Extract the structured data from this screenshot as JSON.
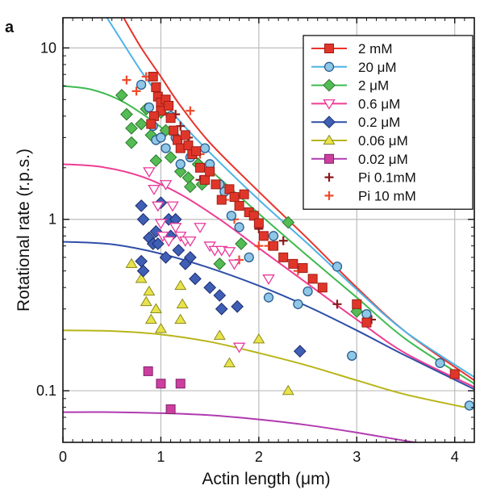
{
  "panel_label": "a",
  "chart_data": {
    "type": "scatter",
    "xlabel": "Actin length (μm)",
    "ylabel": "Rotational rate (r.p.s.)",
    "xlim": [
      0,
      4.2
    ],
    "ylim": [
      0.05,
      15
    ],
    "yscale": "log",
    "grid": true,
    "legend_position": "top-right",
    "x_ticks": [
      {
        "v": 0,
        "label": "0"
      },
      {
        "v": 1,
        "label": "1"
      },
      {
        "v": 2,
        "label": "2"
      },
      {
        "v": 3,
        "label": "3"
      },
      {
        "v": 4,
        "label": "4"
      }
    ],
    "y_ticks": [
      {
        "v": 0.1,
        "label": "0.1"
      },
      {
        "v": 1,
        "label": "1"
      },
      {
        "v": 10,
        "label": "10"
      }
    ],
    "series": [
      {
        "name": "2 mM",
        "marker": "square",
        "color": "#e0362a",
        "stroke": "#a01c14",
        "curve": {
          "color": "#e8332a",
          "x": [
            0.62,
            0.8,
            1.0,
            1.2,
            1.5,
            2.0,
            2.5,
            3.0,
            3.5,
            4.2
          ],
          "y": [
            15,
            10,
            6.8,
            4.6,
            2.8,
            1.45,
            0.77,
            0.4,
            0.22,
            0.115
          ]
        },
        "points": [
          [
            0.92,
            6.8
          ],
          [
            0.95,
            5.9
          ],
          [
            0.97,
            5.2
          ],
          [
            1.0,
            4.8
          ],
          [
            1.0,
            4.3
          ],
          [
            0.93,
            4.0
          ],
          [
            0.9,
            3.6
          ],
          [
            1.05,
            5.0
          ],
          [
            1.08,
            4.6
          ],
          [
            1.1,
            3.9
          ],
          [
            1.13,
            3.3
          ],
          [
            1.17,
            2.9
          ],
          [
            1.2,
            2.6
          ],
          [
            1.25,
            3.1
          ],
          [
            1.28,
            2.7
          ],
          [
            1.32,
            2.4
          ],
          [
            1.36,
            2.5
          ],
          [
            1.4,
            2.0
          ],
          [
            1.45,
            1.7
          ],
          [
            1.5,
            1.9
          ],
          [
            1.56,
            1.6
          ],
          [
            1.62,
            1.3
          ],
          [
            1.7,
            1.5
          ],
          [
            1.75,
            1.35
          ],
          [
            1.8,
            1.2
          ],
          [
            1.85,
            1.4
          ],
          [
            1.9,
            1.1
          ],
          [
            1.95,
            1.05
          ],
          [
            2.0,
            0.95
          ],
          [
            2.05,
            0.8
          ],
          [
            2.15,
            0.7
          ],
          [
            2.25,
            0.6
          ],
          [
            2.35,
            0.55
          ],
          [
            2.45,
            0.52
          ],
          [
            2.55,
            0.45
          ],
          [
            2.65,
            0.4
          ],
          [
            3.0,
            0.32
          ],
          [
            3.1,
            0.25
          ],
          [
            4.0,
            0.125
          ]
        ]
      },
      {
        "name": "20 μM",
        "marker": "circle",
        "color": "#8fc7e6",
        "stroke": "#2a5c8e",
        "curve": {
          "color": "#4db3e6",
          "x": [
            0.45,
            0.6,
            0.8,
            1.0,
            1.2,
            1.5,
            2.0,
            2.5,
            3.0,
            3.5,
            4.2
          ],
          "y": [
            15,
            11,
            7.3,
            5.1,
            3.7,
            2.45,
            1.3,
            0.72,
            0.39,
            0.22,
            0.12
          ]
        },
        "points": [
          [
            0.8,
            6.1
          ],
          [
            0.88,
            4.5
          ],
          [
            0.92,
            3.5
          ],
          [
            0.95,
            2.9
          ],
          [
            1.0,
            3.0
          ],
          [
            1.05,
            2.6
          ],
          [
            1.1,
            4.0
          ],
          [
            1.15,
            3.0
          ],
          [
            1.2,
            2.1
          ],
          [
            1.3,
            2.3
          ],
          [
            1.45,
            2.6
          ],
          [
            1.5,
            2.1
          ],
          [
            1.6,
            1.6
          ],
          [
            1.65,
            1.45
          ],
          [
            1.72,
            1.05
          ],
          [
            1.8,
            0.9
          ],
          [
            1.9,
            0.6
          ],
          [
            2.1,
            0.35
          ],
          [
            2.15,
            0.8
          ],
          [
            2.4,
            0.32
          ],
          [
            2.5,
            0.38
          ],
          [
            2.8,
            0.53
          ],
          [
            2.95,
            0.16
          ],
          [
            3.1,
            0.28
          ],
          [
            3.85,
            0.145
          ],
          [
            4.15,
            0.082
          ]
        ]
      },
      {
        "name": "2 μM",
        "marker": "diamond",
        "color": "#55bb55",
        "stroke": "#2a7a2a",
        "curve": {
          "color": "#3fba4f",
          "x": [
            0,
            0.3,
            0.6,
            0.9,
            1.2,
            1.5,
            2.0,
            2.5,
            3.0,
            3.5,
            4.2
          ],
          "y": [
            6.0,
            5.7,
            4.9,
            3.8,
            2.8,
            1.95,
            1.08,
            0.61,
            0.35,
            0.2,
            0.11
          ]
        },
        "points": [
          [
            0.6,
            5.3
          ],
          [
            0.65,
            4.1
          ],
          [
            0.7,
            3.4
          ],
          [
            0.7,
            2.8
          ],
          [
            0.8,
            3.6
          ],
          [
            0.85,
            4.4
          ],
          [
            0.9,
            3.1
          ],
          [
            0.95,
            2.2
          ],
          [
            1.0,
            4.2
          ],
          [
            1.05,
            3.3
          ],
          [
            1.1,
            2.3
          ],
          [
            1.2,
            1.9
          ],
          [
            1.28,
            1.75
          ],
          [
            1.3,
            1.55
          ],
          [
            1.38,
            2.1
          ],
          [
            1.42,
            1.6
          ],
          [
            1.6,
            0.55
          ],
          [
            1.82,
            0.72
          ],
          [
            2.3,
            0.96
          ],
          [
            3.0,
            0.29
          ]
        ]
      },
      {
        "name": "0.6 μM",
        "marker": "triangle-down",
        "color": "#ffffff",
        "stroke": "#e8399a",
        "curve": {
          "color": "#ee3d93",
          "x": [
            0,
            0.4,
            0.8,
            1.2,
            1.6,
            2.0,
            2.5,
            3.0,
            3.5,
            4.2
          ],
          "y": [
            2.1,
            2.02,
            1.78,
            1.4,
            1.0,
            0.68,
            0.42,
            0.26,
            0.165,
            0.105
          ]
        },
        "points": [
          [
            0.88,
            1.9
          ],
          [
            0.93,
            1.5
          ],
          [
            0.97,
            1.2
          ],
          [
            1.0,
            0.95
          ],
          [
            1.02,
            0.8
          ],
          [
            1.05,
            1.6
          ],
          [
            1.08,
            0.75
          ],
          [
            1.12,
            1.2
          ],
          [
            1.15,
            0.9
          ],
          [
            1.2,
            0.8
          ],
          [
            1.25,
            0.75
          ],
          [
            1.3,
            0.75
          ],
          [
            1.4,
            0.9
          ],
          [
            1.5,
            0.7
          ],
          [
            1.55,
            0.66
          ],
          [
            1.62,
            0.66
          ],
          [
            1.7,
            0.65
          ],
          [
            1.75,
            0.55
          ],
          [
            1.8,
            0.18
          ],
          [
            2.1,
            0.45
          ]
        ]
      },
      {
        "name": "0.2 μM",
        "marker": "diamond",
        "color": "#3f5fb5",
        "stroke": "#1c2d6e",
        "curve": {
          "color": "#2f4fa8",
          "x": [
            0,
            0.5,
            1.0,
            1.5,
            2.0,
            2.5,
            3.0,
            3.5,
            4.2
          ],
          "y": [
            0.74,
            0.715,
            0.63,
            0.52,
            0.41,
            0.31,
            0.225,
            0.16,
            0.102
          ]
        },
        "points": [
          [
            0.8,
            1.2
          ],
          [
            0.82,
            1.0
          ],
          [
            0.8,
            0.57
          ],
          [
            0.82,
            0.5
          ],
          [
            0.88,
            0.78
          ],
          [
            0.92,
            0.72
          ],
          [
            0.95,
            0.85
          ],
          [
            0.97,
            0.72
          ],
          [
            1.0,
            1.25
          ],
          [
            1.05,
            0.6
          ],
          [
            1.08,
            1.0
          ],
          [
            1.1,
            0.8
          ],
          [
            1.15,
            1.0
          ],
          [
            1.18,
            0.66
          ],
          [
            1.25,
            0.55
          ],
          [
            1.3,
            0.6
          ],
          [
            1.35,
            0.45
          ],
          [
            1.5,
            0.4
          ],
          [
            1.6,
            0.36
          ],
          [
            1.62,
            0.3
          ],
          [
            1.78,
            0.31
          ],
          [
            2.42,
            0.17
          ]
        ]
      },
      {
        "name": "0.06 μM",
        "marker": "triangle",
        "color": "#e8e34a",
        "stroke": "#8a8a20",
        "curve": {
          "color": "#b8b51a",
          "x": [
            0,
            0.5,
            1.0,
            1.5,
            2.0,
            2.5,
            3.0,
            3.5,
            4.2
          ],
          "y": [
            0.225,
            0.223,
            0.213,
            0.193,
            0.166,
            0.14,
            0.115,
            0.095,
            0.078
          ]
        },
        "points": [
          [
            0.7,
            0.55
          ],
          [
            0.8,
            0.45
          ],
          [
            0.85,
            0.33
          ],
          [
            0.88,
            0.38
          ],
          [
            0.9,
            0.26
          ],
          [
            0.95,
            0.3
          ],
          [
            1.0,
            0.23
          ],
          [
            1.2,
            0.41
          ],
          [
            1.22,
            0.32
          ],
          [
            1.2,
            0.26
          ],
          [
            1.6,
            0.21
          ],
          [
            1.7,
            0.145
          ],
          [
            2.0,
            0.2
          ],
          [
            2.3,
            0.1
          ]
        ]
      },
      {
        "name": "0.02 μM",
        "marker": "square",
        "color": "#cc3f9e",
        "stroke": "#80226a",
        "curve": {
          "color": "#b03bb0",
          "x": [
            0,
            0.5,
            1.0,
            1.5,
            2.0,
            2.5,
            3.0,
            3.5,
            4.2
          ],
          "y": [
            0.075,
            0.075,
            0.074,
            0.072,
            0.068,
            0.063,
            0.057,
            0.051,
            0.044
          ]
        },
        "points": [
          [
            0.87,
            0.13
          ],
          [
            1.0,
            0.11
          ],
          [
            1.2,
            0.11
          ],
          [
            1.1,
            0.078
          ]
        ]
      },
      {
        "name": "Pi 0.1mM",
        "marker": "plus",
        "color": "#8a1a1a",
        "stroke": "#8a1a1a",
        "points": [
          [
            1.15,
            4.1
          ],
          [
            1.2,
            3.5
          ],
          [
            1.28,
            3.0
          ],
          [
            1.4,
            1.7
          ],
          [
            2.0,
            0.88
          ],
          [
            2.25,
            0.75
          ],
          [
            2.8,
            0.32
          ],
          [
            3.0,
            0.3
          ],
          [
            3.15,
            0.26
          ]
        ]
      },
      {
        "name": "Pi 10 mM",
        "marker": "plus",
        "color": "#f04a2a",
        "stroke": "#f04a2a",
        "points": [
          [
            0.65,
            6.5
          ],
          [
            0.75,
            5.6
          ],
          [
            0.85,
            6.8
          ],
          [
            1.3,
            4.3
          ],
          [
            1.4,
            2.4
          ],
          [
            1.65,
            1.3
          ],
          [
            1.75,
            1.0
          ],
          [
            2.0,
            0.7
          ],
          [
            2.1,
            0.7
          ],
          [
            2.4,
            0.5
          ],
          [
            1.8,
            0.58
          ]
        ]
      }
    ]
  }
}
